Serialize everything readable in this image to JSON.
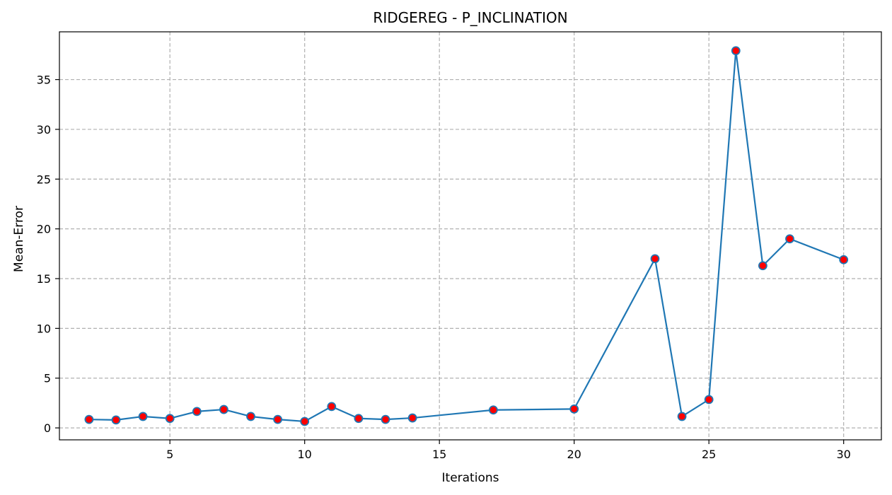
{
  "chart_data": {
    "type": "line",
    "title": "RIDGEREG - P_INCLINATION",
    "xlabel": "Iterations",
    "ylabel": "Mean-Error",
    "xlim": [
      0.9,
      31.4
    ],
    "ylim": [
      -1.2,
      39.8
    ],
    "xticks": [
      5,
      10,
      15,
      20,
      25,
      30
    ],
    "yticks": [
      0,
      5,
      10,
      15,
      20,
      25,
      30,
      35
    ],
    "grid": true,
    "line_color": "#1f77b4",
    "marker_face_color": "#ff0000",
    "marker_edge_color": "#1f77b4",
    "series": [
      {
        "x": [
          2,
          3,
          4,
          5,
          6,
          7,
          8,
          9,
          10,
          11,
          12,
          13,
          14,
          17,
          20,
          23,
          24,
          25,
          26,
          27,
          28,
          30
        ],
        "y": [
          0.85,
          0.8,
          1.15,
          0.95,
          1.65,
          1.85,
          1.15,
          0.85,
          0.65,
          2.15,
          0.95,
          0.85,
          1.0,
          1.8,
          1.9,
          17.0,
          1.15,
          2.85,
          37.9,
          16.3,
          19.0,
          16.9
        ]
      }
    ]
  }
}
